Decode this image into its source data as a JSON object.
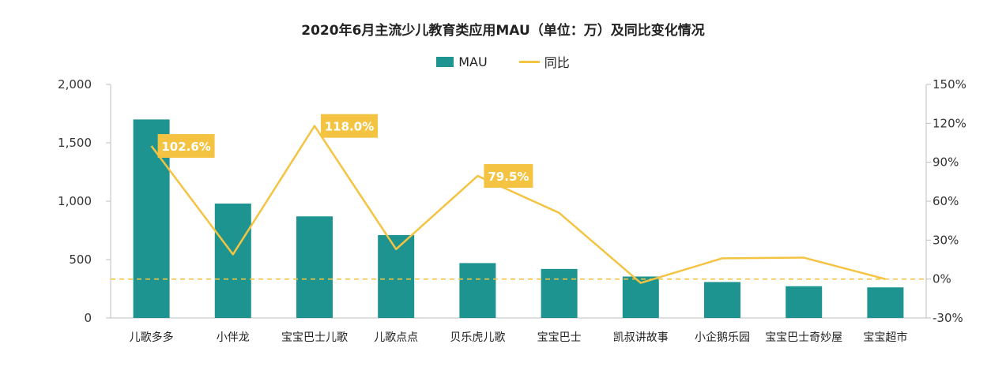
{
  "chart_data": {
    "type": "bar",
    "title": "2020年6月主流少儿教育类应用MAU（单位：万）及同比变化情况",
    "categories": [
      "儿歌多多",
      "小伴龙",
      "宝宝巴士儿歌",
      "儿歌点点",
      "贝乐虎儿歌",
      "宝宝巴士",
      "凯叔讲故事",
      "小企鹅乐园",
      "宝宝巴士奇妙屋",
      "宝宝超市"
    ],
    "series": [
      {
        "name": "MAU",
        "type": "bar",
        "axis": "left",
        "color": "#1e9490",
        "values": [
          1700,
          980,
          870,
          710,
          470,
          420,
          355,
          308,
          272,
          262
        ]
      },
      {
        "name": "同比",
        "type": "line",
        "axis": "right",
        "color": "#f5c342",
        "values": [
          102.6,
          19,
          118.0,
          23,
          79.5,
          51,
          -3,
          16,
          16.5,
          0
        ]
      }
    ],
    "data_labels": [
      {
        "series": "同比",
        "index": 0,
        "text": "102.6%"
      },
      {
        "series": "同比",
        "index": 2,
        "text": "118.0%"
      },
      {
        "series": "同比",
        "index": 4,
        "text": "79.5%"
      }
    ],
    "y_left": {
      "ylim": [
        0,
        2000
      ],
      "ticks": [
        "0",
        "500",
        "1,000",
        "1,500",
        "2,000"
      ],
      "tick_values": [
        0,
        500,
        1000,
        1500,
        2000
      ]
    },
    "y_right": {
      "ylim": [
        -30,
        150
      ],
      "ticks": [
        "-30%",
        "0%",
        "30%",
        "60%",
        "90%",
        "120%",
        "150%"
      ],
      "tick_values": [
        -30,
        0,
        30,
        60,
        90,
        120,
        150
      ]
    },
    "reference_line": {
      "axis": "right",
      "value": 0,
      "style": "dashed",
      "color": "#f5c342"
    },
    "legend": {
      "position": "top-center",
      "items": [
        "MAU",
        "同比"
      ]
    },
    "grid": false
  }
}
